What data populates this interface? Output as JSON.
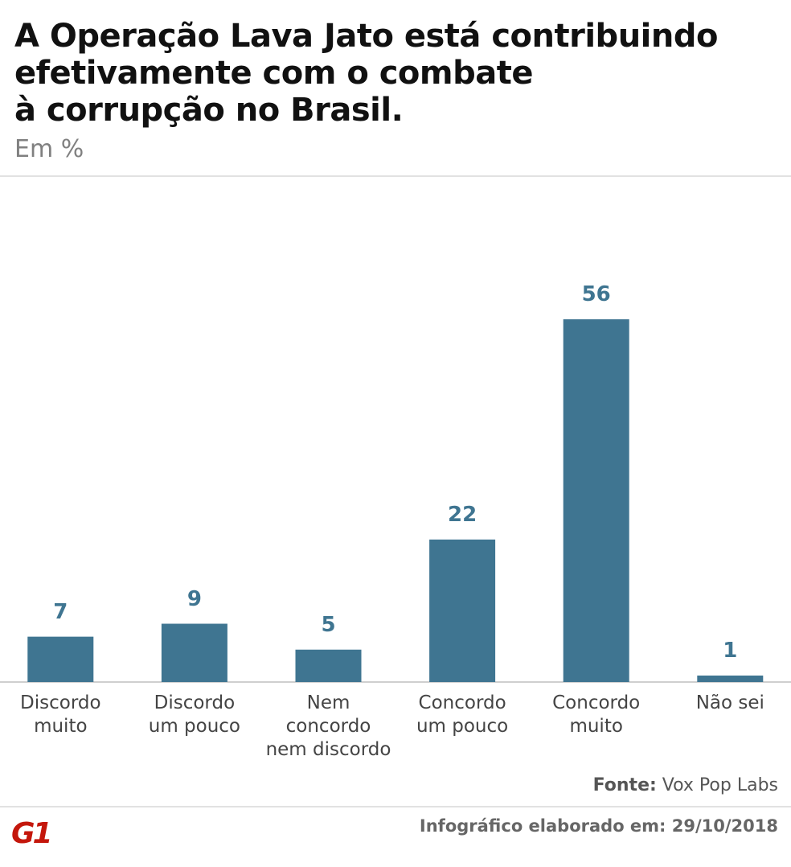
{
  "chart_data": {
    "type": "bar",
    "title": "A Operação Lava Jato está contribuindo\nefetivamente com o combate\nà corrupção no Brasil.",
    "subtitle": "Em %",
    "categories": [
      "Discordo\nmuito",
      "Discordo\num pouco",
      "Nem\nconcordo\nnem discordo",
      "Concordo\num pouco",
      "Concordo\nmuito",
      "Não sei"
    ],
    "values": [
      7,
      9,
      5,
      22,
      56,
      1
    ],
    "color": "#3f7591",
    "source_label": "Fonte:",
    "source": "Vox Pop Labs",
    "credit": "Infográfico elaborado em: 29/10/2018",
    "logo": "G1"
  }
}
